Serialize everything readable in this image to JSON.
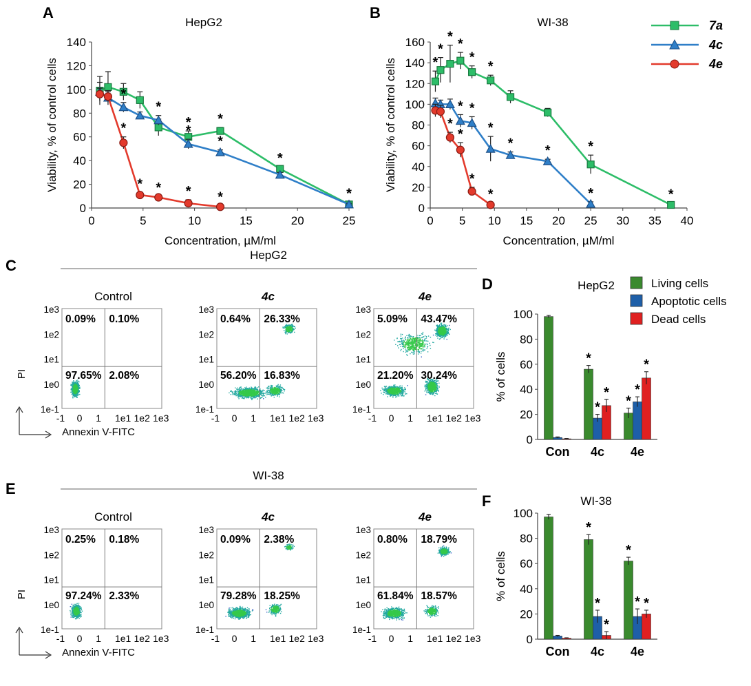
{
  "panel_letters": {
    "A": "A",
    "B": "B",
    "C": "C",
    "D": "D",
    "E": "E",
    "F": "F"
  },
  "legend_lines": [
    {
      "name": "7a",
      "color": "#2dbd68",
      "marker": "square"
    },
    {
      "name": "4c",
      "color": "#2f7fc8",
      "marker": "triangle"
    },
    {
      "name": "4e",
      "color": "#e33a2c",
      "marker": "circle"
    }
  ],
  "flow": {
    "C": {
      "header": "HepG2",
      "axis_x_label": "Annexin V-FITC",
      "axis_y_label": "PI",
      "y_ticks": [
        "1e3",
        "1e2",
        "1e1",
        "1e0",
        "1e-1"
      ],
      "x_ticks": [
        "-1",
        "0",
        "1",
        "1e1",
        "1e2",
        "1e3"
      ],
      "plots": [
        {
          "title": "Control",
          "q": [
            "0.09%",
            "0.10%",
            "97.65%",
            "2.08%"
          ],
          "density": "control"
        },
        {
          "title": "4c",
          "q": [
            "0.64%",
            "26.33%",
            "56.20%",
            "16.83%"
          ],
          "density": "mid"
        },
        {
          "title": "4e",
          "q": [
            "5.09%",
            "43.47%",
            "21.20%",
            "30.24%"
          ],
          "density": "high"
        }
      ]
    },
    "E": {
      "header": "WI-38",
      "axis_x_label": "Annexin V-FITC",
      "axis_y_label": "PI",
      "y_ticks": [
        "1e3",
        "1e2",
        "1e1",
        "1e0",
        "1e-1"
      ],
      "x_ticks": [
        "-1",
        "0",
        "1",
        "1e1",
        "1e2",
        "1e3"
      ],
      "plots": [
        {
          "title": "Control",
          "q": [
            "0.25%",
            "0.18%",
            "97.24%",
            "2.33%"
          ],
          "density": "control"
        },
        {
          "title": "4c",
          "q": [
            "0.09%",
            "2.38%",
            "79.28%",
            "18.25%"
          ],
          "density": "mid"
        },
        {
          "title": "4e",
          "q": [
            "0.80%",
            "18.79%",
            "61.84%",
            "18.57%"
          ],
          "density": "high"
        }
      ]
    }
  },
  "chart_data": [
    {
      "id": "A",
      "type": "line",
      "title": "HepG2",
      "xlabel": "Concentration, µM/ml",
      "ylabel": "Viability, % of control cells",
      "xlim": [
        0,
        25
      ],
      "ylim": [
        0,
        140
      ],
      "xticks": [
        0,
        5,
        10,
        15,
        20,
        25
      ],
      "yticks": [
        0,
        20,
        40,
        60,
        80,
        100,
        120,
        140
      ],
      "series": [
        {
          "name": "7a",
          "color": "#2dbd68",
          "marker": "square",
          "x": [
            0.8,
            1.6,
            3.1,
            4.7,
            6.5,
            9.4,
            12.5,
            18.3,
            25
          ],
          "y": [
            99,
            102,
            98,
            91,
            68,
            60,
            65,
            33,
            3
          ],
          "err": [
            12,
            13,
            7,
            7,
            7,
            5,
            3,
            2,
            2
          ],
          "star": [
            false,
            false,
            false,
            false,
            false,
            true,
            true,
            true,
            true
          ]
        },
        {
          "name": "4c",
          "color": "#2f7fc8",
          "marker": "triangle",
          "x": [
            0.8,
            1.6,
            3.1,
            4.7,
            6.5,
            9.4,
            12.5,
            18.3,
            25
          ],
          "y": [
            98,
            93,
            85,
            78,
            74,
            54,
            47,
            28,
            3
          ],
          "err": [
            8,
            6,
            4,
            3,
            4,
            4,
            2,
            2,
            1
          ],
          "star": [
            false,
            false,
            true,
            false,
            true,
            true,
            true,
            false,
            false
          ]
        },
        {
          "name": "4e",
          "color": "#e33a2c",
          "marker": "circle",
          "x": [
            0.8,
            1.6,
            3.1,
            4.7,
            6.5,
            9.4,
            12.5
          ],
          "y": [
            96,
            94,
            55,
            11,
            9,
            4,
            1
          ],
          "err": [
            5,
            4,
            5,
            2,
            1,
            3,
            1
          ],
          "star": [
            false,
            false,
            true,
            true,
            true,
            true,
            true
          ]
        }
      ]
    },
    {
      "id": "B",
      "type": "line",
      "title": "WI-38",
      "xlabel": "Concentration, µM/ml",
      "ylabel": "Viability, % of control cells",
      "xlim": [
        0,
        40
      ],
      "ylim": [
        0,
        160
      ],
      "xticks": [
        0,
        5,
        10,
        15,
        20,
        25,
        30,
        35,
        40
      ],
      "yticks": [
        0,
        20,
        40,
        60,
        80,
        100,
        120,
        140,
        160
      ],
      "series": [
        {
          "name": "7a",
          "color": "#2dbd68",
          "marker": "square",
          "x": [
            0.8,
            1.6,
            3.1,
            4.7,
            6.5,
            9.4,
            12.5,
            18.3,
            25,
            37.5
          ],
          "y": [
            122,
            133,
            139,
            142,
            131,
            123,
            107,
            92,
            42,
            3
          ],
          "err": [
            10,
            12,
            18,
            8,
            6,
            5,
            6,
            4,
            9,
            2
          ],
          "star": [
            true,
            true,
            true,
            true,
            true,
            true,
            false,
            false,
            true,
            true
          ]
        },
        {
          "name": "4c",
          "color": "#2f7fc8",
          "marker": "triangle",
          "x": [
            0.8,
            1.6,
            3.1,
            4.7,
            6.5,
            9.4,
            12.5,
            18.3,
            25
          ],
          "y": [
            101,
            100,
            100,
            84,
            82,
            57,
            51,
            45,
            4
          ],
          "err": [
            5,
            4,
            5,
            6,
            6,
            12,
            3,
            2,
            2
          ],
          "star": [
            false,
            false,
            false,
            true,
            true,
            true,
            true,
            true,
            true
          ]
        },
        {
          "name": "4e",
          "color": "#e33a2c",
          "marker": "circle",
          "x": [
            0.8,
            1.6,
            3.1,
            4.7,
            6.5,
            9.4
          ],
          "y": [
            94,
            93,
            68,
            56,
            16,
            3
          ],
          "err": [
            6,
            6,
            5,
            7,
            4,
            2
          ],
          "star": [
            false,
            false,
            true,
            true,
            true,
            true
          ]
        }
      ]
    },
    {
      "id": "D",
      "type": "bar",
      "title": "HepG2",
      "ylabel": "% of cells",
      "categories": [
        "Con",
        "4c",
        "4e"
      ],
      "ylim": [
        0,
        100
      ],
      "yticks": [
        0,
        20,
        40,
        60,
        80,
        100
      ],
      "legend": [
        "Living cells",
        "Apoptotic  cells",
        "Dead cells"
      ],
      "series": [
        {
          "name": "Living cells",
          "color": "#3a8a2e",
          "values": [
            98,
            56,
            21
          ],
          "err": [
            1,
            3,
            4
          ],
          "star": [
            false,
            true,
            true
          ]
        },
        {
          "name": "Apoptotic  cells",
          "color": "#1e5fa8",
          "values": [
            1.5,
            17,
            30
          ],
          "err": [
            0.5,
            3,
            4
          ],
          "star": [
            false,
            true,
            true
          ]
        },
        {
          "name": "Dead cells",
          "color": "#e02020",
          "values": [
            0.5,
            27,
            49
          ],
          "err": [
            0.3,
            5,
            5
          ],
          "star": [
            false,
            true,
            true
          ]
        }
      ]
    },
    {
      "id": "F",
      "type": "bar",
      "title": "WI-38",
      "ylabel": "% of cells",
      "categories": [
        "Con",
        "4c",
        "4e"
      ],
      "ylim": [
        0,
        100
      ],
      "yticks": [
        0,
        20,
        40,
        60,
        80,
        100
      ],
      "series": [
        {
          "name": "Living cells",
          "color": "#3a8a2e",
          "values": [
            97,
            79,
            62
          ],
          "err": [
            2,
            4,
            3
          ],
          "star": [
            false,
            true,
            true
          ]
        },
        {
          "name": "Apoptotic  cells",
          "color": "#1e5fa8",
          "values": [
            2.5,
            18,
            18
          ],
          "err": [
            0.5,
            5,
            6
          ],
          "star": [
            false,
            true,
            true
          ]
        },
        {
          "name": "Dead cells",
          "color": "#e02020",
          "values": [
            0.8,
            3,
            20
          ],
          "err": [
            0.3,
            3,
            3
          ],
          "star": [
            false,
            true,
            true
          ]
        }
      ]
    }
  ]
}
